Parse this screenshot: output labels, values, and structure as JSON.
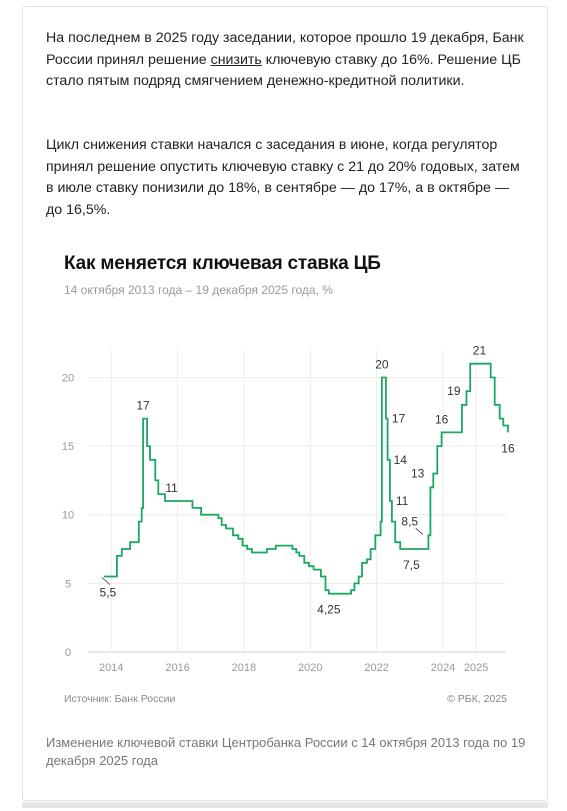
{
  "article": {
    "p1_before": "На последнем в 2025 году заседании, которое прошло 19 декабря, Банк России принял решение ",
    "p1_link": "снизить",
    "p1_after": " ключевую ставку до 16%. Решение ЦБ стало пятым подряд смягчением денежно-кредитной политики.",
    "p2": "Цикл снижения ставки начался с заседания в июне, когда регулятор принял решение опустить ключевую ставку с 21 до 20% годовых, затем в июле ставку понизили до 18%, в сентябре — до 17%, а в октябре — до 16,5%."
  },
  "chart_data": {
    "type": "line",
    "title": "Как меняется ключевая ставка ЦБ",
    "subtitle": "14 октября 2013 года – 19 декабря 2025 года, %",
    "x_unit": "year",
    "xlim": [
      2013.3,
      2025.9
    ],
    "ylim": [
      0,
      22
    ],
    "y_ticks": [
      0,
      5,
      10,
      15,
      20
    ],
    "x_ticks": [
      {
        "value": 2014,
        "label": "2014"
      },
      {
        "value": 2016,
        "label": "2016"
      },
      {
        "value": 2018,
        "label": "2018"
      },
      {
        "value": 2020,
        "label": "2020"
      },
      {
        "value": 2022,
        "label": "2022"
      },
      {
        "value": 2024,
        "label": "2024"
      },
      {
        "value": 2025,
        "label": "2025"
      }
    ],
    "grid": true,
    "line_color": "#1aa862",
    "series": [
      {
        "values": [
          [
            2013.78,
            5.5
          ],
          [
            2014.17,
            7.0
          ],
          [
            2014.32,
            7.5
          ],
          [
            2014.57,
            8.0
          ],
          [
            2014.83,
            9.5
          ],
          [
            2014.92,
            10.5
          ],
          [
            2014.96,
            17.0
          ],
          [
            2015.08,
            15.0
          ],
          [
            2015.17,
            14.0
          ],
          [
            2015.33,
            12.5
          ],
          [
            2015.42,
            11.5
          ],
          [
            2015.62,
            11.0
          ],
          [
            2016.45,
            10.5
          ],
          [
            2016.71,
            10.0
          ],
          [
            2017.23,
            9.75
          ],
          [
            2017.33,
            9.25
          ],
          [
            2017.46,
            9.0
          ],
          [
            2017.67,
            8.5
          ],
          [
            2017.83,
            8.25
          ],
          [
            2017.96,
            7.75
          ],
          [
            2018.1,
            7.5
          ],
          [
            2018.24,
            7.25
          ],
          [
            2018.69,
            7.5
          ],
          [
            2018.96,
            7.75
          ],
          [
            2019.46,
            7.5
          ],
          [
            2019.58,
            7.25
          ],
          [
            2019.67,
            7.0
          ],
          [
            2019.82,
            6.5
          ],
          [
            2019.96,
            6.25
          ],
          [
            2020.1,
            6.0
          ],
          [
            2020.32,
            5.5
          ],
          [
            2020.46,
            4.5
          ],
          [
            2020.56,
            4.25
          ],
          [
            2021.23,
            4.5
          ],
          [
            2021.33,
            5.0
          ],
          [
            2021.46,
            5.5
          ],
          [
            2021.56,
            6.5
          ],
          [
            2021.71,
            6.75
          ],
          [
            2021.82,
            7.5
          ],
          [
            2021.96,
            8.5
          ],
          [
            2022.12,
            9.5
          ],
          [
            2022.16,
            20.0
          ],
          [
            2022.28,
            17.0
          ],
          [
            2022.33,
            14.0
          ],
          [
            2022.4,
            11.0
          ],
          [
            2022.46,
            9.5
          ],
          [
            2022.56,
            8.0
          ],
          [
            2022.71,
            7.5
          ],
          [
            2023.56,
            8.5
          ],
          [
            2023.62,
            12.0
          ],
          [
            2023.71,
            13.0
          ],
          [
            2023.83,
            15.0
          ],
          [
            2023.96,
            16.0
          ],
          [
            2024.57,
            18.0
          ],
          [
            2024.71,
            19.0
          ],
          [
            2024.82,
            21.0
          ],
          [
            2025.44,
            20.0
          ],
          [
            2025.56,
            18.0
          ],
          [
            2025.71,
            17.0
          ],
          [
            2025.82,
            16.5
          ],
          [
            2025.96,
            16.0
          ]
        ]
      }
    ],
    "data_labels": [
      {
        "x": 2013.9,
        "y": 5.5,
        "text": "5,5",
        "pos": "below",
        "leader": true
      },
      {
        "x": 2014.96,
        "y": 17.0,
        "text": "17",
        "pos": "above"
      },
      {
        "x": 2015.82,
        "y": 11.0,
        "text": "11",
        "pos": "above"
      },
      {
        "x": 2020.56,
        "y": 4.25,
        "text": "4,25",
        "pos": "below"
      },
      {
        "x": 2022.16,
        "y": 20.0,
        "text": "20",
        "pos": "above"
      },
      {
        "x": 2022.28,
        "y": 17.0,
        "text": "17",
        "pos": "right"
      },
      {
        "x": 2022.33,
        "y": 14.0,
        "text": "14",
        "pos": "right"
      },
      {
        "x": 2022.4,
        "y": 11.0,
        "text": "11",
        "pos": "right"
      },
      {
        "x": 2023.05,
        "y": 7.5,
        "text": "7,5",
        "pos": "below"
      },
      {
        "x": 2023.3,
        "y": 8.5,
        "text": "8,5",
        "pos": "above-left",
        "leader": true
      },
      {
        "x": 2023.62,
        "y": 13.0,
        "text": "13",
        "pos": "left"
      },
      {
        "x": 2023.96,
        "y": 16.0,
        "text": "16",
        "pos": "above"
      },
      {
        "x": 2024.71,
        "y": 19.0,
        "text": "19",
        "pos": "left"
      },
      {
        "x": 2025.1,
        "y": 21.0,
        "text": "21",
        "pos": "above"
      },
      {
        "x": 2025.96,
        "y": 16.0,
        "text": "16",
        "pos": "below"
      }
    ]
  },
  "footer": {
    "source": "Источник: Банк России",
    "copyright": "© РБК, 2025",
    "caption": "Изменение ключевой ставки Центробанка России с 14 октября 2013 года по 19 декабря 2025 года"
  }
}
